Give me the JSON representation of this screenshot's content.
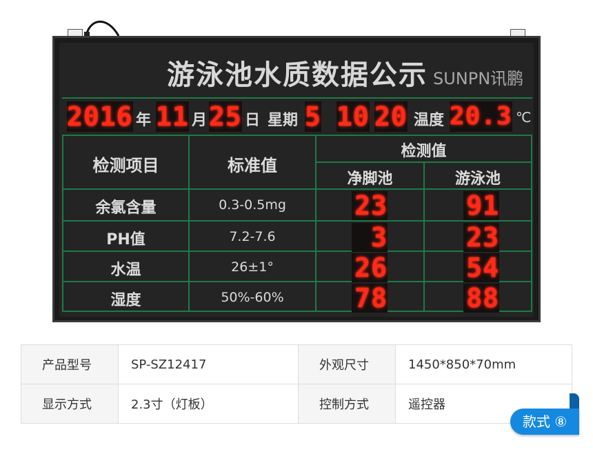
{
  "board": {
    "title": "游泳池水质数据公示",
    "datetime": {
      "year": "2016",
      "year_label": "年",
      "month": "11",
      "month_label": "月",
      "day": "25",
      "day_label": "日",
      "weekday_label": "星期",
      "weekday": "5",
      "hour": "10",
      "minute": "20",
      "temp_label": "温度",
      "temp": "20.3",
      "temp_unit": "℃"
    },
    "headers": {
      "item": "检测项目",
      "standard": "标准值",
      "measured": "检测值",
      "pool1": "净脚池",
      "pool2": "游泳池"
    },
    "rows": [
      {
        "item": "余氯含量",
        "standard": "0.3-0.5mg",
        "pool1": "23",
        "pool2": "91"
      },
      {
        "item": "PH值",
        "standard": "7.2-7.6",
        "pool1": "3",
        "pool2": "23"
      },
      {
        "item": "水温",
        "standard": "26±1°",
        "pool1": "26",
        "pool2": "54"
      },
      {
        "item": "湿度",
        "standard": "50%-60%",
        "pool1": "78",
        "pool2": "88"
      }
    ],
    "watermark": "SUNPN讯鹏",
    "led_color": "#ff2a1a",
    "grid_color": "#1f7a45"
  },
  "specs": [
    {
      "k1": "产品型号",
      "v1": "SP-SZ12417",
      "k2": "外观尺寸",
      "v2": "1450*850*70mm"
    },
    {
      "k1": "显示方式",
      "v1": "2.3寸（灯板）",
      "k2": "控制方式",
      "v2": "遥控器"
    }
  ],
  "badge": "款式 ⑧"
}
